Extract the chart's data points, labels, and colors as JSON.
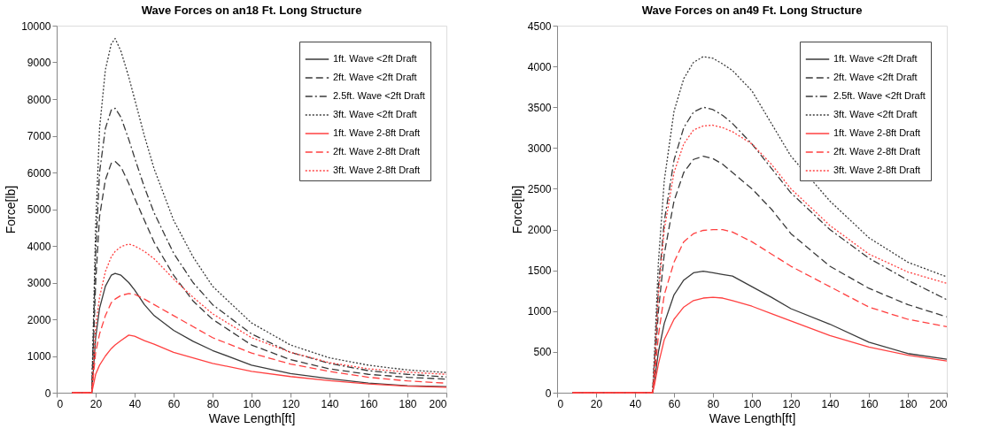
{
  "chart_data": [
    {
      "type": "line",
      "title": "Wave Forces on an18 Ft. Long Structure",
      "xlabel": "Wave Length[ft]",
      "ylabel": "Force[lb]",
      "xlim": [
        0,
        200
      ],
      "xticks": [
        0,
        20,
        40,
        60,
        80,
        100,
        120,
        140,
        160,
        180,
        200
      ],
      "ylim": [
        0,
        10000
      ],
      "yticks": [
        0,
        1000,
        2000,
        3000,
        4000,
        5000,
        6000,
        7000,
        8000,
        9000,
        10000
      ],
      "grid": false,
      "legend": "top right",
      "marker": "none",
      "x": [
        8,
        18,
        20,
        22,
        25,
        28,
        30,
        33,
        37,
        40,
        45,
        50,
        60,
        70,
        80,
        100,
        120,
        140,
        160,
        180,
        200
      ],
      "series": [
        {
          "name": "1ft. Wave <2ft Draft",
          "color": "#3a3a3a",
          "line_style": "solid",
          "values": [
            0,
            0,
            1500,
            2300,
            2900,
            3200,
            3250,
            3200,
            3000,
            2800,
            2400,
            2100,
            1700,
            1400,
            1150,
            750,
            520,
            380,
            260,
            190,
            165
          ]
        },
        {
          "name": "2ft. Wave <2ft Draft",
          "color": "#3a3a3a",
          "line_style": "dashed",
          "values": [
            0,
            0,
            3000,
            4800,
            5800,
            6250,
            6300,
            6150,
            5700,
            5300,
            4700,
            4100,
            3200,
            2500,
            2000,
            1300,
            900,
            650,
            500,
            420,
            370
          ]
        },
        {
          "name": "2.5ft. Wave <2ft Draft",
          "color": "#3a3a3a",
          "line_style": "dashdot",
          "values": [
            0,
            0,
            3800,
            6000,
            7200,
            7700,
            7750,
            7500,
            6900,
            6400,
            5600,
            4900,
            3800,
            3000,
            2400,
            1600,
            1100,
            800,
            600,
            500,
            430
          ]
        },
        {
          "name": "3ft. Wave <2ft Draft",
          "color": "#3a3a3a",
          "line_style": "dotted",
          "values": [
            0,
            0,
            4500,
            7200,
            8800,
            9500,
            9650,
            9300,
            8600,
            8000,
            7000,
            6100,
            4700,
            3700,
            2900,
            1900,
            1300,
            950,
            750,
            620,
            550
          ]
        },
        {
          "name": "1ft. Wave 2-8ft Draft",
          "color": "#ff4040",
          "line_style": "solid",
          "values": [
            0,
            0,
            500,
            750,
            1000,
            1200,
            1300,
            1420,
            1570,
            1540,
            1420,
            1320,
            1100,
            950,
            800,
            580,
            440,
            330,
            240,
            180,
            150
          ]
        },
        {
          "name": "2ft. Wave 2-8ft Draft",
          "color": "#ff4040",
          "line_style": "dashed",
          "values": [
            0,
            0,
            1100,
            1600,
            2100,
            2450,
            2550,
            2650,
            2700,
            2680,
            2550,
            2400,
            2100,
            1800,
            1500,
            1080,
            780,
            580,
            420,
            320,
            260
          ]
        },
        {
          "name": "3ft. Wave 2-8ft Draft",
          "color": "#ff4040",
          "line_style": "dotted",
          "values": [
            0,
            0,
            1800,
            2600,
            3300,
            3700,
            3850,
            3980,
            4050,
            4000,
            3850,
            3650,
            3100,
            2600,
            2150,
            1500,
            1100,
            820,
            650,
            560,
            500
          ]
        }
      ]
    },
    {
      "type": "line",
      "title": "Wave Forces on an49 Ft. Long Structure",
      "xlabel": "Wave Length[ft]",
      "ylabel": "Force[lb]",
      "xlim": [
        0,
        200
      ],
      "xticks": [
        0,
        20,
        40,
        60,
        80,
        100,
        120,
        140,
        160,
        180,
        200
      ],
      "ylim": [
        0,
        4500
      ],
      "yticks": [
        0,
        500,
        1000,
        1500,
        2000,
        2500,
        3000,
        3500,
        4000,
        4500
      ],
      "grid": false,
      "legend": "top right",
      "marker": "none",
      "x": [
        8,
        49,
        50,
        52,
        55,
        60,
        65,
        70,
        75,
        80,
        85,
        90,
        100,
        110,
        120,
        140,
        160,
        180,
        200
      ],
      "series": [
        {
          "name": "1ft. Wave <2ft Draft",
          "color": "#3a3a3a",
          "line_style": "solid",
          "values": [
            0,
            0,
            150,
            500,
            850,
            1200,
            1380,
            1470,
            1490,
            1470,
            1450,
            1430,
            1300,
            1170,
            1030,
            840,
            620,
            480,
            410
          ]
        },
        {
          "name": "2ft. Wave <2ft Draft",
          "color": "#3a3a3a",
          "line_style": "dashed",
          "values": [
            0,
            0,
            300,
            1000,
            1700,
            2350,
            2700,
            2860,
            2900,
            2870,
            2800,
            2700,
            2500,
            2250,
            1950,
            1550,
            1280,
            1080,
            930
          ]
        },
        {
          "name": "2.5ft. Wave <2ft Draft",
          "color": "#3a3a3a",
          "line_style": "dashdot",
          "values": [
            0,
            0,
            400,
            1300,
            2100,
            2850,
            3250,
            3440,
            3500,
            3470,
            3400,
            3300,
            3050,
            2750,
            2450,
            2000,
            1650,
            1380,
            1140
          ]
        },
        {
          "name": "3ft. Wave <2ft Draft",
          "color": "#3a3a3a",
          "line_style": "dotted",
          "values": [
            0,
            0,
            500,
            1600,
            2600,
            3450,
            3850,
            4050,
            4120,
            4100,
            4030,
            3950,
            3700,
            3300,
            2900,
            2350,
            1900,
            1600,
            1420
          ]
        },
        {
          "name": "1ft. Wave 2-8ft Draft",
          "color": "#ff4040",
          "line_style": "solid",
          "values": [
            0,
            0,
            100,
            350,
            650,
            900,
            1050,
            1130,
            1160,
            1170,
            1160,
            1130,
            1060,
            970,
            880,
            700,
            560,
            460,
            390
          ]
        },
        {
          "name": "2ft. Wave 2-8ft Draft",
          "color": "#ff4040",
          "line_style": "dashed",
          "values": [
            0,
            0,
            200,
            700,
            1200,
            1600,
            1850,
            1950,
            1990,
            2000,
            2000,
            1970,
            1850,
            1700,
            1550,
            1300,
            1050,
            900,
            810
          ]
        },
        {
          "name": "3ft. Wave 2-8ft Draft",
          "color": "#ff4040",
          "line_style": "dotted",
          "values": [
            0,
            0,
            350,
            1200,
            2000,
            2700,
            3050,
            3220,
            3270,
            3280,
            3250,
            3200,
            3050,
            2800,
            2500,
            2050,
            1700,
            1480,
            1340
          ]
        }
      ]
    }
  ]
}
